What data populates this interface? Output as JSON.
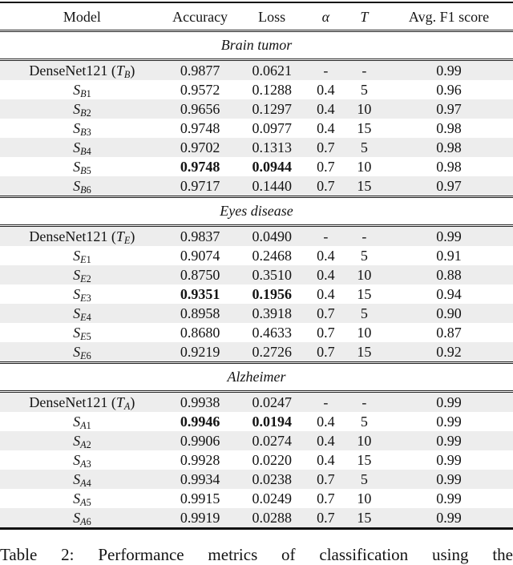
{
  "caption": {
    "text": "Table 2: Performance metrics of classification using the"
  },
  "table": {
    "shaded_row_color": "#ededed",
    "rule_color": "#222222",
    "columns": [
      {
        "label": "Model",
        "italic": false
      },
      {
        "label": "Accuracy",
        "italic": false
      },
      {
        "label": "Loss",
        "italic": false
      },
      {
        "label": "α",
        "italic": true
      },
      {
        "label": "T",
        "italic": true
      },
      {
        "label": "Avg. F1 score",
        "italic": false
      }
    ],
    "sections": [
      {
        "title": "Brain tumor",
        "rows": [
          {
            "model": [
              {
                "k": "n",
                "v": "DenseNet121 ("
              },
              {
                "k": "i",
                "v": "T"
              },
              {
                "k": "si",
                "v": "B"
              },
              {
                "k": "n",
                "v": ")"
              }
            ],
            "accuracy": "0.9877",
            "loss": "0.0621",
            "alpha": "-",
            "temperature": "-",
            "f1": "0.99",
            "bold": false
          },
          {
            "model": [
              {
                "k": "i",
                "v": "S"
              },
              {
                "k": "si",
                "v": "B"
              },
              {
                "k": "s",
                "v": "1"
              }
            ],
            "accuracy": "0.9572",
            "loss": "0.1288",
            "alpha": "0.4",
            "temperature": "5",
            "f1": "0.96",
            "bold": false
          },
          {
            "model": [
              {
                "k": "i",
                "v": "S"
              },
              {
                "k": "si",
                "v": "B"
              },
              {
                "k": "s",
                "v": "2"
              }
            ],
            "accuracy": "0.9656",
            "loss": "0.1297",
            "alpha": "0.4",
            "temperature": "10",
            "f1": "0.97",
            "bold": false
          },
          {
            "model": [
              {
                "k": "i",
                "v": "S"
              },
              {
                "k": "si",
                "v": "B"
              },
              {
                "k": "s",
                "v": "3"
              }
            ],
            "accuracy": "0.9748",
            "loss": "0.0977",
            "alpha": "0.4",
            "temperature": "15",
            "f1": "0.98",
            "bold": false
          },
          {
            "model": [
              {
                "k": "i",
                "v": "S"
              },
              {
                "k": "si",
                "v": "B"
              },
              {
                "k": "s",
                "v": "4"
              }
            ],
            "accuracy": "0.9702",
            "loss": "0.1313",
            "alpha": "0.7",
            "temperature": "5",
            "f1": "0.98",
            "bold": false
          },
          {
            "model": [
              {
                "k": "i",
                "v": "S"
              },
              {
                "k": "si",
                "v": "B"
              },
              {
                "k": "s",
                "v": "5"
              }
            ],
            "accuracy": "0.9748",
            "loss": "0.0944",
            "alpha": "0.7",
            "temperature": "10",
            "f1": "0.98",
            "bold": true
          },
          {
            "model": [
              {
                "k": "i",
                "v": "S"
              },
              {
                "k": "si",
                "v": "B"
              },
              {
                "k": "s",
                "v": "6"
              }
            ],
            "accuracy": "0.9717",
            "loss": "0.1440",
            "alpha": "0.7",
            "temperature": "15",
            "f1": "0.97",
            "bold": false
          }
        ]
      },
      {
        "title": "Eyes disease",
        "rows": [
          {
            "model": [
              {
                "k": "n",
                "v": "DenseNet121 ("
              },
              {
                "k": "i",
                "v": "T"
              },
              {
                "k": "si",
                "v": "E"
              },
              {
                "k": "n",
                "v": ")"
              }
            ],
            "accuracy": "0.9837",
            "loss": "0.0490",
            "alpha": "-",
            "temperature": "-",
            "f1": "0.99",
            "bold": false
          },
          {
            "model": [
              {
                "k": "i",
                "v": "S"
              },
              {
                "k": "si",
                "v": "E"
              },
              {
                "k": "s",
                "v": "1"
              }
            ],
            "accuracy": "0.9074",
            "loss": "0.2468",
            "alpha": "0.4",
            "temperature": "5",
            "f1": "0.91",
            "bold": false
          },
          {
            "model": [
              {
                "k": "i",
                "v": "S"
              },
              {
                "k": "si",
                "v": "E"
              },
              {
                "k": "s",
                "v": "2"
              }
            ],
            "accuracy": "0.8750",
            "loss": "0.3510",
            "alpha": "0.4",
            "temperature": "10",
            "f1": "0.88",
            "bold": false
          },
          {
            "model": [
              {
                "k": "i",
                "v": "S"
              },
              {
                "k": "si",
                "v": "E"
              },
              {
                "k": "s",
                "v": "3"
              }
            ],
            "accuracy": "0.9351",
            "loss": "0.1956",
            "alpha": "0.4",
            "temperature": "15",
            "f1": "0.94",
            "bold": true
          },
          {
            "model": [
              {
                "k": "i",
                "v": "S"
              },
              {
                "k": "si",
                "v": "E"
              },
              {
                "k": "s",
                "v": "4"
              }
            ],
            "accuracy": "0.8958",
            "loss": "0.3918",
            "alpha": "0.7",
            "temperature": "5",
            "f1": "0.90",
            "bold": false
          },
          {
            "model": [
              {
                "k": "i",
                "v": "S"
              },
              {
                "k": "si",
                "v": "E"
              },
              {
                "k": "s",
                "v": "5"
              }
            ],
            "accuracy": "0.8680",
            "loss": "0.4633",
            "alpha": "0.7",
            "temperature": "10",
            "f1": "0.87",
            "bold": false
          },
          {
            "model": [
              {
                "k": "i",
                "v": "S"
              },
              {
                "k": "si",
                "v": "E"
              },
              {
                "k": "s",
                "v": "6"
              }
            ],
            "accuracy": "0.9219",
            "loss": "0.2726",
            "alpha": "0.7",
            "temperature": "15",
            "f1": "0.92",
            "bold": false
          }
        ]
      },
      {
        "title": "Alzheimer",
        "rows": [
          {
            "model": [
              {
                "k": "n",
                "v": "DenseNet121 ("
              },
              {
                "k": "i",
                "v": "T"
              },
              {
                "k": "si",
                "v": "A"
              },
              {
                "k": "n",
                "v": ")"
              }
            ],
            "accuracy": "0.9938",
            "loss": "0.0247",
            "alpha": "-",
            "temperature": "-",
            "f1": "0.99",
            "bold": false
          },
          {
            "model": [
              {
                "k": "i",
                "v": "S"
              },
              {
                "k": "si",
                "v": "A"
              },
              {
                "k": "s",
                "v": "1"
              }
            ],
            "accuracy": "0.9946",
            "loss": "0.0194",
            "alpha": "0.4",
            "temperature": "5",
            "f1": "0.99",
            "bold": true
          },
          {
            "model": [
              {
                "k": "i",
                "v": "S"
              },
              {
                "k": "si",
                "v": "A"
              },
              {
                "k": "s",
                "v": "2"
              }
            ],
            "accuracy": "0.9906",
            "loss": "0.0274",
            "alpha": "0.4",
            "temperature": "10",
            "f1": "0.99",
            "bold": false
          },
          {
            "model": [
              {
                "k": "i",
                "v": "S"
              },
              {
                "k": "si",
                "v": "A"
              },
              {
                "k": "s",
                "v": "3"
              }
            ],
            "accuracy": "0.9928",
            "loss": "0.0220",
            "alpha": "0.4",
            "temperature": "15",
            "f1": "0.99",
            "bold": false
          },
          {
            "model": [
              {
                "k": "i",
                "v": "S"
              },
              {
                "k": "si",
                "v": "A"
              },
              {
                "k": "s",
                "v": "4"
              }
            ],
            "accuracy": "0.9934",
            "loss": "0.0238",
            "alpha": "0.7",
            "temperature": "5",
            "f1": "0.99",
            "bold": false
          },
          {
            "model": [
              {
                "k": "i",
                "v": "S"
              },
              {
                "k": "si",
                "v": "A"
              },
              {
                "k": "s",
                "v": "5"
              }
            ],
            "accuracy": "0.9915",
            "loss": "0.0249",
            "alpha": "0.7",
            "temperature": "10",
            "f1": "0.99",
            "bold": false
          },
          {
            "model": [
              {
                "k": "i",
                "v": "S"
              },
              {
                "k": "si",
                "v": "A"
              },
              {
                "k": "s",
                "v": "6"
              }
            ],
            "accuracy": "0.9919",
            "loss": "0.0288",
            "alpha": "0.7",
            "temperature": "15",
            "f1": "0.99",
            "bold": false
          }
        ]
      }
    ]
  }
}
